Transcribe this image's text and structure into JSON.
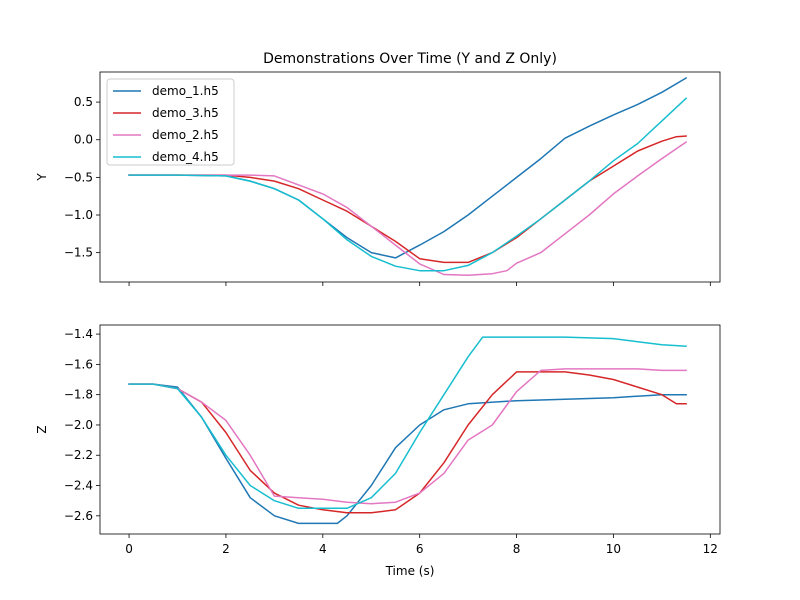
{
  "chart_data": {
    "type": "line",
    "title": "Demonstrations Over Time (Y and Z Only)",
    "xlabel": "Time (s)",
    "xlim": [
      -0.6,
      12.2
    ],
    "xticks": [
      0,
      2,
      4,
      6,
      8,
      10,
      12
    ],
    "legend_position": "upper-left",
    "grid": false,
    "series_meta": [
      {
        "name": "demo_1.h5",
        "color": "#1f77b4"
      },
      {
        "name": "demo_3.h5",
        "color": "#d62728"
      },
      {
        "name": "demo_2.h5",
        "color": "#e377c2"
      },
      {
        "name": "demo_4.h5",
        "color": "#17becf"
      }
    ],
    "subplots": [
      {
        "ylabel": "Y",
        "ylim": [
          -1.89,
          0.9
        ],
        "yticks": [
          0.5,
          0.0,
          -0.5,
          -1.0,
          -1.5
        ],
        "ytick_labels": [
          "0.5",
          "0.0",
          "−0.5",
          "−1.0",
          "−1.5"
        ],
        "series": [
          {
            "name": "demo_1.h5",
            "x": [
              0,
              1,
              2,
              2.5,
              3,
              3.5,
              4,
              4.5,
              5,
              5.5,
              6,
              6.5,
              7,
              7.5,
              8,
              8.5,
              9,
              9.5,
              10,
              10.5,
              11,
              11.5
            ],
            "y": [
              -0.47,
              -0.47,
              -0.48,
              -0.55,
              -0.65,
              -0.8,
              -1.05,
              -1.3,
              -1.5,
              -1.57,
              -1.4,
              -1.22,
              -1.0,
              -0.75,
              -0.5,
              -0.25,
              0.02,
              0.18,
              0.33,
              0.47,
              0.63,
              0.82
            ]
          },
          {
            "name": "demo_3.h5",
            "x": [
              0,
              1,
              2,
              2.5,
              3,
              3.5,
              4,
              4.5,
              5,
              5.5,
              6,
              6.5,
              7,
              7.5,
              8,
              8.5,
              9,
              9.5,
              10,
              10.5,
              11,
              11.3,
              11.5
            ],
            "y": [
              -0.47,
              -0.47,
              -0.47,
              -0.5,
              -0.55,
              -0.65,
              -0.8,
              -0.95,
              -1.15,
              -1.35,
              -1.58,
              -1.63,
              -1.63,
              -1.5,
              -1.3,
              -1.05,
              -0.8,
              -0.55,
              -0.35,
              -0.15,
              -0.02,
              0.04,
              0.05
            ]
          },
          {
            "name": "demo_2.h5",
            "x": [
              0,
              1,
              2,
              2.5,
              3,
              3.5,
              4,
              4.5,
              5,
              5.5,
              6,
              6.5,
              7,
              7.5,
              7.8,
              8,
              8.5,
              9,
              9.5,
              10,
              10.5,
              11,
              11.5
            ],
            "y": [
              -0.47,
              -0.47,
              -0.47,
              -0.47,
              -0.48,
              -0.6,
              -0.72,
              -0.9,
              -1.15,
              -1.4,
              -1.65,
              -1.79,
              -1.8,
              -1.78,
              -1.74,
              -1.64,
              -1.5,
              -1.25,
              -1.0,
              -0.72,
              -0.48,
              -0.25,
              -0.03
            ]
          },
          {
            "name": "demo_4.h5",
            "x": [
              0,
              1,
              2,
              2.5,
              3,
              3.5,
              4,
              4.5,
              5,
              5.5,
              6,
              6.5,
              7,
              7.5,
              8,
              8.5,
              9,
              9.5,
              10,
              10.5,
              11,
              11.5
            ],
            "y": [
              -0.47,
              -0.47,
              -0.48,
              -0.55,
              -0.65,
              -0.8,
              -1.05,
              -1.33,
              -1.55,
              -1.68,
              -1.74,
              -1.74,
              -1.67,
              -1.5,
              -1.28,
              -1.05,
              -0.8,
              -0.55,
              -0.28,
              -0.05,
              0.25,
              0.55
            ]
          }
        ]
      },
      {
        "ylabel": "Z",
        "ylim": [
          -2.72,
          -1.34
        ],
        "yticks": [
          -1.4,
          -1.6,
          -1.8,
          -2.0,
          -2.2,
          -2.4,
          -2.6
        ],
        "ytick_labels": [
          "−1.4",
          "−1.6",
          "−1.8",
          "−2.0",
          "−2.2",
          "−2.4",
          "−2.6"
        ],
        "series": [
          {
            "name": "demo_1.h5",
            "x": [
              0,
              0.5,
              1,
              1.5,
              2,
              2.5,
              3,
              3.5,
              4,
              4.3,
              4.5,
              5,
              5.5,
              6,
              6.5,
              7,
              8,
              9,
              10,
              11,
              11.5
            ],
            "y": [
              -1.73,
              -1.73,
              -1.75,
              -1.95,
              -2.22,
              -2.48,
              -2.6,
              -2.65,
              -2.65,
              -2.65,
              -2.6,
              -2.4,
              -2.15,
              -2.0,
              -1.9,
              -1.86,
              -1.84,
              -1.83,
              -1.82,
              -1.8,
              -1.8
            ]
          },
          {
            "name": "demo_3.h5",
            "x": [
              0,
              0.5,
              1,
              1.5,
              2,
              2.5,
              3,
              3.5,
              4,
              4.5,
              5,
              5.5,
              6,
              6.5,
              7,
              7.5,
              8,
              8.5,
              9,
              9.5,
              10,
              10.5,
              11,
              11.3,
              11.5
            ],
            "y": [
              -1.73,
              -1.73,
              -1.76,
              -1.85,
              -2.05,
              -2.3,
              -2.45,
              -2.53,
              -2.56,
              -2.58,
              -2.58,
              -2.56,
              -2.45,
              -2.25,
              -2.0,
              -1.8,
              -1.65,
              -1.65,
              -1.65,
              -1.67,
              -1.7,
              -1.75,
              -1.8,
              -1.86,
              -1.86
            ]
          },
          {
            "name": "demo_2.h5",
            "x": [
              0,
              0.5,
              1,
              1.5,
              2,
              2.5,
              3,
              3.5,
              4,
              4.5,
              5,
              5.5,
              6,
              6.5,
              7,
              7.5,
              8,
              8.5,
              9,
              9.5,
              10,
              10.5,
              11,
              11.5
            ],
            "y": [
              -1.73,
              -1.73,
              -1.76,
              -1.85,
              -1.97,
              -2.2,
              -2.47,
              -2.48,
              -2.49,
              -2.51,
              -2.52,
              -2.51,
              -2.45,
              -2.32,
              -2.1,
              -2.0,
              -1.78,
              -1.64,
              -1.63,
              -1.63,
              -1.63,
              -1.63,
              -1.64,
              -1.64
            ]
          },
          {
            "name": "demo_4.h5",
            "x": [
              0,
              0.5,
              1,
              1.5,
              2,
              2.5,
              3,
              3.5,
              4,
              4.5,
              5,
              5.5,
              6,
              6.5,
              7,
              7.3,
              8,
              9,
              10,
              10.5,
              11,
              11.5
            ],
            "y": [
              -1.73,
              -1.73,
              -1.76,
              -1.95,
              -2.2,
              -2.4,
              -2.5,
              -2.55,
              -2.55,
              -2.55,
              -2.48,
              -2.32,
              -2.05,
              -1.8,
              -1.55,
              -1.42,
              -1.42,
              -1.42,
              -1.43,
              -1.45,
              -1.47,
              -1.48
            ]
          }
        ]
      }
    ]
  }
}
